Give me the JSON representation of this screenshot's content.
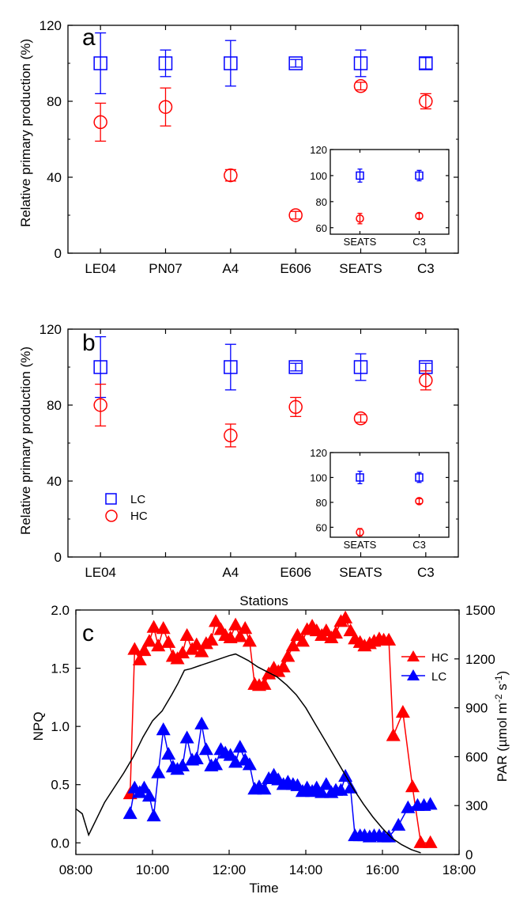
{
  "chart_data": [
    {
      "panel": "a",
      "type": "scatter",
      "categories": [
        "LE04",
        "PN07",
        "A4",
        "E606",
        "SEATS",
        "C3"
      ],
      "ylabel": "Relative primary production (%)",
      "xlabel": "",
      "ylim": [
        0,
        120
      ],
      "yticks": [
        0,
        40,
        80,
        120
      ],
      "series": [
        {
          "name": "LC",
          "color": "#0000ff",
          "marker": "square",
          "values": [
            100,
            100,
            100,
            100,
            100,
            100
          ],
          "err": [
            16,
            7,
            12,
            2,
            7,
            3
          ]
        },
        {
          "name": "HC",
          "color": "#ff0000",
          "marker": "circle",
          "values": [
            69,
            77,
            41,
            20,
            88,
            80
          ],
          "err": [
            10,
            10,
            3,
            2,
            2,
            4
          ]
        }
      ],
      "inset": {
        "categories": [
          "SEATS",
          "C3"
        ],
        "ylim": [
          55,
          120
        ],
        "yticks": [
          60,
          80,
          100,
          120
        ],
        "series": [
          {
            "name": "LC",
            "color": "#0000ff",
            "marker": "square",
            "values": [
              100,
              100
            ],
            "err": [
              5,
              4
            ]
          },
          {
            "name": "HC",
            "color": "#ff0000",
            "marker": "circle",
            "values": [
              67,
              69
            ],
            "err": [
              4,
              2
            ]
          }
        ]
      }
    },
    {
      "panel": "b",
      "type": "scatter",
      "categories": [
        "LE04",
        "",
        "A4",
        "E606",
        "SEATS",
        "C3"
      ],
      "ylabel": "Relative primary production (%)",
      "xlabel": "Stations",
      "ylim": [
        0,
        120
      ],
      "yticks": [
        0,
        40,
        80,
        120
      ],
      "legend": {
        "position": "bottom-left",
        "entries": [
          "LC",
          "HC"
        ]
      },
      "series": [
        {
          "name": "LC",
          "color": "#0000ff",
          "marker": "square",
          "values": [
            100,
            null,
            100,
            100,
            100,
            100
          ],
          "err": [
            16,
            null,
            12,
            2,
            7,
            2
          ]
        },
        {
          "name": "HC",
          "color": "#ff0000",
          "marker": "circle",
          "values": [
            80,
            null,
            64,
            79,
            73,
            93
          ],
          "err": [
            11,
            null,
            6,
            5,
            2,
            5
          ]
        }
      ],
      "inset": {
        "categories": [
          "SEATS",
          "C3"
        ],
        "ylim": [
          52,
          120
        ],
        "yticks": [
          60,
          80,
          100,
          120
        ],
        "series": [
          {
            "name": "LC",
            "color": "#0000ff",
            "marker": "square",
            "values": [
              100,
              100
            ],
            "err": [
              5,
              4
            ]
          },
          {
            "name": "HC",
            "color": "#ff0000",
            "marker": "circle",
            "values": [
              56,
              81
            ],
            "err": [
              3,
              2
            ]
          }
        ]
      }
    },
    {
      "panel": "c",
      "type": "line",
      "xlabel": "Time",
      "ylabel": "NPQ",
      "y2label": "PAR (µmol m-2 s-1)",
      "xlim": [
        "08:00",
        "18:00"
      ],
      "xticks": [
        "08:00",
        "10:00",
        "12:00",
        "14:00",
        "16:00",
        "18:00"
      ],
      "ylim": [
        -0.1,
        2.0
      ],
      "yticks": [
        "0.0",
        "0.5",
        "1.0",
        "1.5",
        "2.0"
      ],
      "y2lim": [
        0,
        1500
      ],
      "y2ticks": [
        "0",
        "300",
        "600",
        "900",
        "1200",
        "1500"
      ],
      "legend": {
        "position": "top-right",
        "entries": [
          "HC",
          "LC"
        ]
      },
      "series": [
        {
          "name": "HC",
          "color": "#ff0000",
          "marker": "triangle",
          "points": [
            [
              "09:25",
              0.42
            ],
            [
              "09:32",
              1.66
            ],
            [
              "09:40",
              1.57
            ],
            [
              "09:47",
              1.65
            ],
            [
              "09:55",
              1.73
            ],
            [
              "10:02",
              1.85
            ],
            [
              "10:09",
              1.69
            ],
            [
              "10:17",
              1.84
            ],
            [
              "10:25",
              1.72
            ],
            [
              "10:32",
              1.6
            ],
            [
              "10:39",
              1.58
            ],
            [
              "10:47",
              1.63
            ],
            [
              "10:54",
              1.78
            ],
            [
              "11:02",
              1.66
            ],
            [
              "11:09",
              1.7
            ],
            [
              "11:17",
              1.64
            ],
            [
              "11:24",
              1.71
            ],
            [
              "11:32",
              1.74
            ],
            [
              "11:39",
              1.9
            ],
            [
              "11:47",
              1.83
            ],
            [
              "11:54",
              1.78
            ],
            [
              "12:02",
              1.76
            ],
            [
              "12:10",
              1.87
            ],
            [
              "12:17",
              1.77
            ],
            [
              "12:25",
              1.84
            ],
            [
              "12:32",
              1.73
            ],
            [
              "12:40",
              1.36
            ],
            [
              "12:47",
              1.35
            ],
            [
              "12:55",
              1.36
            ],
            [
              "13:02",
              1.45
            ],
            [
              "13:10",
              1.5
            ],
            [
              "13:17",
              1.47
            ],
            [
              "13:25",
              1.51
            ],
            [
              "13:32",
              1.6
            ],
            [
              "13:40",
              1.69
            ],
            [
              "13:47",
              1.78
            ],
            [
              "13:55",
              1.73
            ],
            [
              "14:02",
              1.83
            ],
            [
              "14:10",
              1.86
            ],
            [
              "14:17",
              1.82
            ],
            [
              "14:25",
              1.78
            ],
            [
              "14:32",
              1.82
            ],
            [
              "14:40",
              1.76
            ],
            [
              "14:47",
              1.8
            ],
            [
              "14:55",
              1.9
            ],
            [
              "15:02",
              1.93
            ],
            [
              "15:10",
              1.82
            ],
            [
              "15:17",
              1.75
            ],
            [
              "15:25",
              1.72
            ],
            [
              "15:32",
              1.69
            ],
            [
              "15:40",
              1.71
            ],
            [
              "15:47",
              1.73
            ],
            [
              "15:55",
              1.75
            ],
            [
              "16:02",
              1.74
            ],
            [
              "16:10",
              1.74
            ],
            [
              "16:17",
              0.92
            ],
            [
              "16:32",
              1.12
            ],
            [
              "16:47",
              0.48
            ],
            [
              "17:00",
              0.0
            ],
            [
              "17:15",
              0.0
            ]
          ]
        },
        {
          "name": "LC",
          "color": "#0000ff",
          "marker": "triangle",
          "points": [
            [
              "09:25",
              0.25
            ],
            [
              "09:32",
              0.47
            ],
            [
              "09:40",
              0.43
            ],
            [
              "09:47",
              0.47
            ],
            [
              "09:55",
              0.4
            ],
            [
              "10:02",
              0.23
            ],
            [
              "10:09",
              0.6
            ],
            [
              "10:17",
              0.97
            ],
            [
              "10:25",
              0.76
            ],
            [
              "10:32",
              0.65
            ],
            [
              "10:39",
              0.63
            ],
            [
              "10:47",
              0.66
            ],
            [
              "10:54",
              0.9
            ],
            [
              "11:02",
              0.71
            ],
            [
              "11:09",
              0.72
            ],
            [
              "11:17",
              1.02
            ],
            [
              "11:24",
              0.8
            ],
            [
              "11:32",
              0.66
            ],
            [
              "11:39",
              0.67
            ],
            [
              "11:47",
              0.8
            ],
            [
              "11:54",
              0.77
            ],
            [
              "12:02",
              0.75
            ],
            [
              "12:10",
              0.69
            ],
            [
              "12:17",
              0.82
            ],
            [
              "12:25",
              0.71
            ],
            [
              "12:32",
              0.67
            ],
            [
              "12:40",
              0.46
            ],
            [
              "12:47",
              0.48
            ],
            [
              "12:55",
              0.46
            ],
            [
              "13:02",
              0.55
            ],
            [
              "13:10",
              0.58
            ],
            [
              "13:17",
              0.54
            ],
            [
              "13:25",
              0.5
            ],
            [
              "13:32",
              0.52
            ],
            [
              "13:40",
              0.5
            ],
            [
              "13:47",
              0.49
            ],
            [
              "13:55",
              0.44
            ],
            [
              "14:02",
              0.47
            ],
            [
              "14:10",
              0.44
            ],
            [
              "14:17",
              0.47
            ],
            [
              "14:25",
              0.43
            ],
            [
              "14:32",
              0.5
            ],
            [
              "14:40",
              0.43
            ],
            [
              "14:47",
              0.45
            ],
            [
              "14:55",
              0.45
            ],
            [
              "15:02",
              0.57
            ],
            [
              "15:10",
              0.47
            ],
            [
              "15:17",
              0.06
            ],
            [
              "15:25",
              0.06
            ],
            [
              "15:32",
              0.06
            ],
            [
              "15:40",
              0.05
            ],
            [
              "15:47",
              0.06
            ],
            [
              "15:55",
              0.06
            ],
            [
              "16:02",
              0.05
            ],
            [
              "16:10",
              0.05
            ],
            [
              "16:25",
              0.15
            ],
            [
              "16:40",
              0.3
            ],
            [
              "16:55",
              0.32
            ],
            [
              "17:05",
              0.32
            ],
            [
              "17:15",
              0.33
            ]
          ]
        },
        {
          "name": "PAR",
          "color": "#000000",
          "marker": "none",
          "axis": "y2",
          "points": [
            [
              "08:00",
              280
            ],
            [
              "08:10",
              250
            ],
            [
              "08:20",
              120
            ],
            [
              "08:30",
              200
            ],
            [
              "08:45",
              320
            ],
            [
              "09:00",
              410
            ],
            [
              "09:15",
              500
            ],
            [
              "09:30",
              600
            ],
            [
              "09:45",
              720
            ],
            [
              "10:00",
              820
            ],
            [
              "10:15",
              880
            ],
            [
              "10:30",
              980
            ],
            [
              "10:40",
              1050
            ],
            [
              "10:50",
              1130
            ],
            [
              "11:00",
              1140
            ],
            [
              "11:15",
              1160
            ],
            [
              "11:30",
              1180
            ],
            [
              "11:45",
              1200
            ],
            [
              "12:00",
              1220
            ],
            [
              "12:10",
              1230
            ],
            [
              "12:20",
              1210
            ],
            [
              "12:30",
              1190
            ],
            [
              "12:45",
              1150
            ],
            [
              "13:00",
              1120
            ],
            [
              "13:15",
              1090
            ],
            [
              "13:30",
              1040
            ],
            [
              "13:45",
              980
            ],
            [
              "14:00",
              900
            ],
            [
              "14:15",
              800
            ],
            [
              "14:30",
              700
            ],
            [
              "14:45",
              600
            ],
            [
              "15:00",
              500
            ],
            [
              "15:15",
              400
            ],
            [
              "15:30",
              310
            ],
            [
              "15:45",
              230
            ],
            [
              "16:00",
              160
            ],
            [
              "16:15",
              100
            ],
            [
              "16:30",
              60
            ],
            [
              "16:45",
              30
            ],
            [
              "17:00",
              10
            ]
          ]
        }
      ]
    }
  ]
}
